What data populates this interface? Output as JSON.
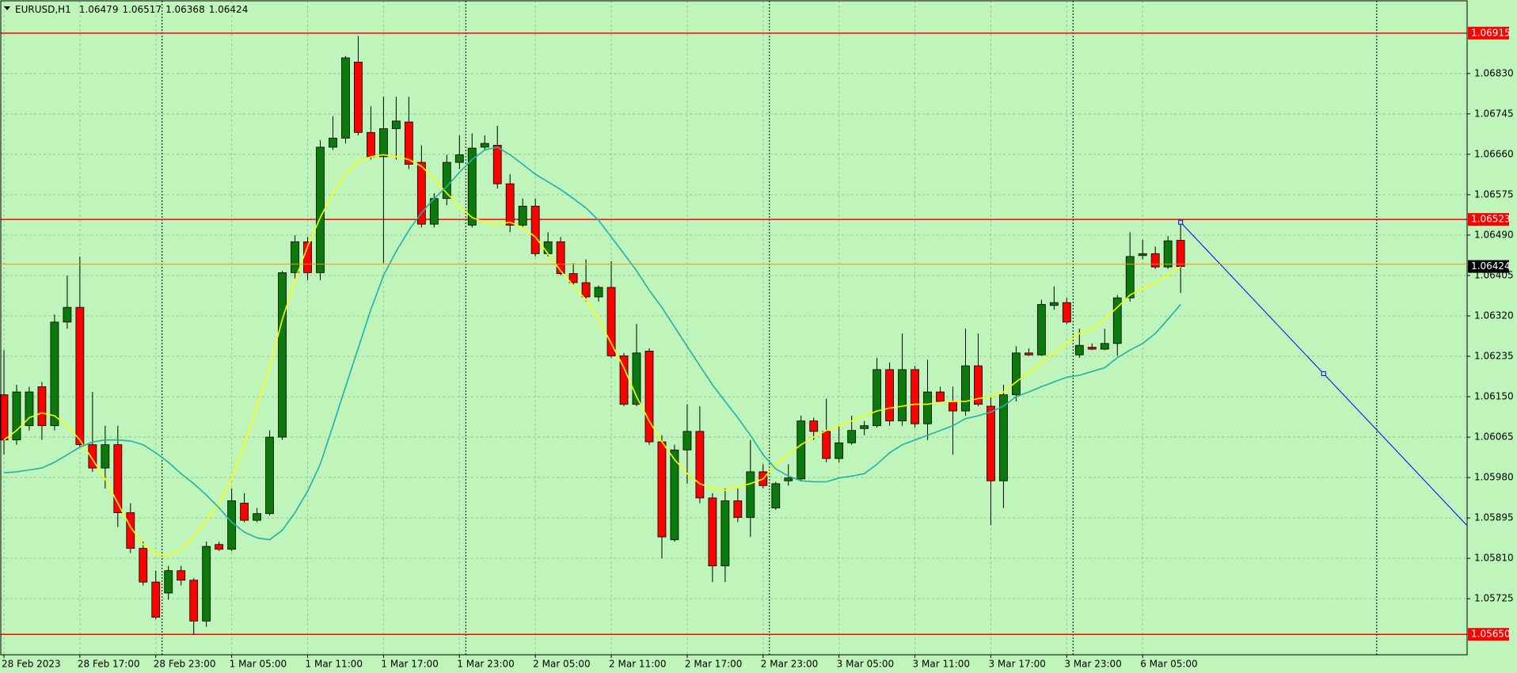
{
  "chart_data": {
    "type": "candlestick",
    "title": "EURUSD,H1",
    "categories": [
      "28 Feb 2023",
      null,
      null,
      null,
      null,
      null,
      "28 Feb 17:00",
      null,
      null,
      null,
      null,
      null,
      "28 Feb 23:00",
      null,
      null,
      null,
      null,
      null,
      "1 Mar 05:00",
      null,
      null,
      null,
      null,
      null,
      "1 Mar 11:00",
      null,
      null,
      null,
      null,
      null,
      "1 Mar 17:00",
      null,
      null,
      null,
      null,
      null,
      "1 Mar 23:00",
      null,
      null,
      null,
      null,
      null,
      "2 Mar 05:00",
      null,
      null,
      null,
      null,
      null,
      "2 Mar 11:00",
      null,
      null,
      null,
      null,
      null,
      "2 Mar 17:00",
      null,
      null,
      null,
      null,
      null,
      "2 Mar 23:00",
      null,
      null,
      null,
      null,
      null,
      "3 Mar 05:00",
      null,
      null,
      null,
      null,
      null,
      "3 Mar 11:00",
      null,
      null,
      null,
      null,
      null,
      "3 Mar 17:00",
      null,
      null,
      null,
      null,
      null,
      "3 Mar 23:00",
      null,
      null,
      null,
      null,
      null,
      "6 Mar 05:00",
      null,
      null,
      null
    ],
    "open": [
      1.06154,
      1.06059,
      1.06089,
      1.06171,
      1.06089,
      1.06307,
      1.06338,
      1.06049,
      1.06,
      1.06049,
      1.05906,
      1.05831,
      1.0576,
      1.05737,
      1.05784,
      1.05764,
      1.05678,
      1.05839,
      1.05829,
      1.05926,
      1.0589,
      1.05904,
      1.06065,
      1.06411,
      1.06476,
      1.06411,
      1.06675,
      1.06694,
      1.06854,
      1.06706,
      1.06655,
      1.06714,
      1.06728,
      1.06643,
      1.06513,
      1.06567,
      1.06643,
      1.06511,
      1.06675,
      1.06679,
      1.06598,
      1.06511,
      1.06551,
      1.06451,
      1.06476,
      1.06409,
      1.0639,
      1.0636,
      1.0638,
      1.06236,
      1.06134,
      1.06246,
      1.06055,
      1.05849,
      1.06038,
      1.06077,
      1.05937,
      1.05794,
      1.05931,
      1.05896,
      1.05992,
      1.05916,
      1.05973,
      1.05977,
      1.06099,
      1.06077,
      1.0602,
      1.06053,
      1.06083,
      1.06089,
      1.06207,
      1.06099,
      1.06207,
      1.06093,
      1.0616,
      1.0614,
      1.0612,
      1.06215,
      1.0613,
      1.05973,
      1.06154,
      1.06242,
      1.06238,
      1.06342,
      1.06348,
      1.06238,
      1.06254,
      1.0625,
      1.06262,
      1.06358,
      1.06447,
      1.06451,
      1.06423,
      1.06479
    ],
    "high": [
      1.06248,
      1.06175,
      1.06171,
      1.06181,
      1.06323,
      1.06405,
      1.06445,
      1.0616,
      1.06089,
      1.06089,
      1.05926,
      1.05845,
      1.05784,
      1.05794,
      1.05794,
      1.05768,
      1.05845,
      1.05845,
      1.05957,
      1.05947,
      1.05916,
      1.06079,
      1.06415,
      1.0649,
      1.06486,
      1.0669,
      1.0674,
      1.06867,
      1.06909,
      1.06761,
      1.06781,
      1.06781,
      1.06781,
      1.06679,
      1.06578,
      1.06659,
      1.067,
      1.06704,
      1.067,
      1.0672,
      1.06618,
      1.06567,
      1.06567,
      1.06496,
      1.06486,
      1.06431,
      1.06439,
      1.06384,
      1.06435,
      1.06242,
      1.06303,
      1.06252,
      1.06069,
      1.06049,
      1.06134,
      1.0613,
      1.05947,
      1.05957,
      1.05957,
      1.06059,
      1.06008,
      1.05971,
      1.06008,
      1.0611,
      1.06106,
      1.06146,
      1.06089,
      1.0611,
      1.06099,
      1.06232,
      1.06222,
      1.06283,
      1.06215,
      1.06228,
      1.06171,
      1.06171,
      1.06293,
      1.06283,
      1.0615,
      1.06175,
      1.06256,
      1.06252,
      1.06354,
      1.06382,
      1.06358,
      1.06293,
      1.06262,
      1.06293,
      1.06364,
      1.06496,
      1.0648,
      1.06466,
      1.06488,
      1.06517
    ],
    "low": [
      1.06028,
      1.06049,
      1.06079,
      1.06059,
      1.06079,
      1.06293,
      1.06044,
      1.05992,
      1.05957,
      1.05876,
      1.05821,
      1.05753,
      1.05682,
      1.05723,
      1.05753,
      1.0565,
      1.05666,
      1.05825,
      1.05825,
      1.05886,
      1.05886,
      1.059,
      1.06059,
      1.06395,
      1.06395,
      1.06395,
      1.06669,
      1.06683,
      1.067,
      1.06649,
      1.06431,
      1.06649,
      1.06629,
      1.06506,
      1.06506,
      1.06553,
      1.06629,
      1.06506,
      1.06669,
      1.06588,
      1.06496,
      1.06506,
      1.06445,
      1.06445,
      1.06405,
      1.06384,
      1.0635,
      1.0635,
      1.06232,
      1.0613,
      1.0613,
      1.06049,
      1.0581,
      1.05845,
      1.05967,
      1.05926,
      1.0576,
      1.0576,
      1.05886,
      1.05855,
      1.05957,
      1.05912,
      1.05963,
      1.05973,
      1.06059,
      1.06012,
      1.06012,
      1.06049,
      1.06069,
      1.06085,
      1.06089,
      1.06089,
      1.06085,
      1.06059,
      1.0614,
      1.06028,
      1.0611,
      1.0613,
      1.0588,
      1.05916,
      1.0614,
      1.06236,
      1.06236,
      1.06333,
      1.06303,
      1.06232,
      1.06248,
      1.06248,
      1.06236,
      1.0635,
      1.06439,
      1.06419,
      1.06419,
      1.06368
    ],
    "close": [
      1.06059,
      1.0616,
      1.0616,
      1.06089,
      1.06307,
      1.06338,
      1.06049,
      1.06,
      1.06049,
      1.05906,
      1.05831,
      1.0576,
      1.05686,
      1.05784,
      1.05764,
      1.05678,
      1.05835,
      1.05829,
      1.05931,
      1.0589,
      1.05904,
      1.06065,
      1.06411,
      1.06476,
      1.06411,
      1.06675,
      1.06694,
      1.06863,
      1.06706,
      1.06655,
      1.06714,
      1.0673,
      1.06639,
      1.06513,
      1.06567,
      1.06643,
      1.06659,
      1.06673,
      1.06683,
      1.06598,
      1.06511,
      1.06551,
      1.06451,
      1.06476,
      1.06409,
      1.0639,
      1.0636,
      1.0638,
      1.06236,
      1.06134,
      1.06242,
      1.06055,
      1.05855,
      1.06038,
      1.06077,
      1.05937,
      1.05794,
      1.05931,
      1.05896,
      1.05992,
      1.05963,
      1.05967,
      1.05979,
      1.06099,
      1.06077,
      1.0602,
      1.06053,
      1.06079,
      1.06089,
      1.06207,
      1.06099,
      1.06207,
      1.06093,
      1.0616,
      1.0614,
      1.0612,
      1.06215,
      1.06134,
      1.05973,
      1.06154,
      1.06242,
      1.06238,
      1.06344,
      1.06348,
      1.06307,
      1.06258,
      1.0625,
      1.06262,
      1.06358,
      1.06445,
      1.06451,
      1.06423,
      1.06478,
      1.06424
    ],
    "up_color": "#0b7a0b",
    "down_color": "#ff0000",
    "lines": [
      {
        "color": "#ffff00",
        "values": [
          1.06059,
          1.06079,
          1.06106,
          1.06116,
          1.0611,
          1.06089,
          1.06059,
          1.06018,
          1.05977,
          1.05926,
          1.05876,
          1.05839,
          1.05819,
          1.05815,
          1.05829,
          1.05855,
          1.0589,
          1.05926,
          1.05977,
          1.06049,
          1.0613,
          1.06211,
          1.06313,
          1.06395,
          1.06466,
          1.06527,
          1.06578,
          1.06618,
          1.06645,
          1.06655,
          1.06659,
          1.06655,
          1.06649,
          1.06635,
          1.06608,
          1.06578,
          1.06551,
          1.06527,
          1.06517,
          1.06513,
          1.06517,
          1.06506,
          1.06486,
          1.06451,
          1.06415,
          1.06384,
          1.06354,
          1.06313,
          1.06262,
          1.06211,
          1.0615,
          1.06099,
          1.06055,
          1.06018,
          1.05988,
          1.05967,
          1.05957,
          1.05953,
          1.05961,
          1.05967,
          1.05977,
          1.06008,
          1.06028,
          1.06049,
          1.06065,
          1.06079,
          1.06089,
          1.06099,
          1.0611,
          1.0612,
          1.06126,
          1.0613,
          1.06134,
          1.06134,
          1.06138,
          1.0614,
          1.0614,
          1.06146,
          1.0615,
          1.0616,
          1.06181,
          1.06201,
          1.06222,
          1.06242,
          1.06262,
          1.06283,
          1.06293,
          1.06313,
          1.06338,
          1.06364,
          1.06378,
          1.0639,
          1.06405,
          1.06424
        ]
      },
      {
        "color": "#1fb2aa",
        "values": [
          1.0599,
          1.05992,
          1.05996,
          1.06,
          1.06012,
          1.06028,
          1.06044,
          1.06055,
          1.06059,
          1.06059,
          1.06057,
          1.06049,
          1.06032,
          1.06012,
          1.05988,
          1.05967,
          1.05943,
          1.05916,
          1.05886,
          1.05865,
          1.05853,
          1.05849,
          1.05869,
          1.05906,
          1.05951,
          1.06008,
          1.06089,
          1.06171,
          1.06252,
          1.06333,
          1.06405,
          1.06456,
          1.065,
          1.06537,
          1.06567,
          1.06592,
          1.06622,
          1.06649,
          1.06669,
          1.06675,
          1.06659,
          1.06639,
          1.06618,
          1.06602,
          1.06586,
          1.06567,
          1.06547,
          1.06521,
          1.06486,
          1.06451,
          1.06415,
          1.06374,
          1.06338,
          1.06297,
          1.06256,
          1.06215,
          1.06175,
          1.0614,
          1.06106,
          1.06069,
          1.06028,
          1.05998,
          1.05983,
          1.05973,
          1.05971,
          1.05971,
          1.05979,
          1.05983,
          1.05988,
          1.06008,
          1.06032,
          1.06049,
          1.06059,
          1.06069,
          1.06079,
          1.06089,
          1.06104,
          1.0611,
          1.06118,
          1.0613,
          1.0615,
          1.0616,
          1.06171,
          1.06181,
          1.06191,
          1.06195,
          1.06203,
          1.06211,
          1.06232,
          1.06248,
          1.06262,
          1.06283,
          1.06313,
          1.06344
        ]
      }
    ],
    "hline_color": "#ff0000",
    "hlines": [
      1.06915,
      1.06523,
      {
        "value": 1.0565,
        "label": "1.05650"
      }
    ],
    "trendline": {
      "color": "#0000ff",
      "x": [
        93,
        115.6
      ],
      "y": [
        1.06517,
        1.0588
      ]
    },
    "ylim": [
      1.05607,
      1.06983
    ],
    "yticks": [
      {
        "value": 1.0683,
        "label": "1.06830"
      },
      {
        "value": 1.06745,
        "label": "1.06745"
      },
      {
        "value": 1.0666,
        "label": "1.06660"
      },
      {
        "value": 1.06575,
        "label": "1.06575"
      },
      {
        "value": 1.0649,
        "label": "1.06490"
      },
      {
        "value": 1.06405,
        "label": "1.06405"
      },
      {
        "value": 1.0632,
        "label": "1.06320"
      },
      {
        "value": 1.06235,
        "label": "1.06235"
      },
      {
        "value": 1.0615,
        "label": "1.06150"
      },
      {
        "value": 1.06065,
        "label": "1.06065"
      },
      {
        "value": 1.0598,
        "label": "1.05980"
      },
      {
        "value": 1.05895,
        "label": "1.05895"
      },
      {
        "value": 1.0581,
        "label": "1.05810"
      },
      {
        "value": 1.05725,
        "label": "1.05725"
      }
    ],
    "grid": true,
    "period_separators": true
  }
}
